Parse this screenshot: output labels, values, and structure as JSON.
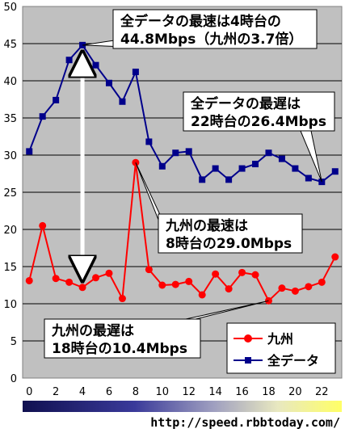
{
  "chart_data": {
    "type": "line",
    "x": [
      0,
      1,
      2,
      3,
      4,
      5,
      6,
      7,
      8,
      9,
      10,
      11,
      12,
      13,
      14,
      15,
      16,
      17,
      18,
      19,
      20,
      21,
      22,
      23
    ],
    "xticks": [
      0,
      2,
      4,
      6,
      8,
      10,
      12,
      14,
      16,
      18,
      20,
      22
    ],
    "xlim": [
      -0.5,
      23.5
    ],
    "ylim": [
      0,
      50
    ],
    "yticks": [
      0,
      5,
      10,
      15,
      20,
      25,
      30,
      35,
      40,
      45,
      50
    ],
    "grid": true,
    "legend_position": "bottom-right",
    "series": [
      {
        "name": "九州",
        "color": "#ff0000",
        "marker": "circle",
        "values": [
          13.1,
          20.5,
          13.4,
          12.9,
          12.2,
          13.5,
          14.1,
          10.7,
          29.0,
          14.6,
          12.5,
          12.6,
          13.0,
          11.2,
          14.0,
          12.0,
          14.2,
          13.9,
          10.4,
          12.1,
          11.7,
          12.3,
          12.9,
          16.3
        ]
      },
      {
        "name": "全データ",
        "color": "#00008b",
        "marker": "square",
        "values": [
          30.5,
          35.2,
          37.4,
          42.8,
          44.8,
          42.1,
          39.7,
          37.2,
          41.2,
          31.8,
          28.5,
          30.3,
          30.5,
          26.7,
          28.2,
          26.7,
          28.2,
          28.8,
          30.3,
          29.5,
          28.2,
          26.9,
          26.4,
          27.8
        ]
      }
    ],
    "annotations": [
      {
        "lines": [
          "全データの最速は4時台の",
          "44.8Mbps（九州の3.7倍）"
        ],
        "x": 4,
        "y": 44.8
      },
      {
        "lines": [
          "全データの最遅は",
          "22時台の26.4Mbps"
        ],
        "x": 22,
        "y": 26.4
      },
      {
        "lines": [
          "九州の最速は",
          "8時台の29.0Mbps"
        ],
        "x": 8,
        "y": 29.0
      },
      {
        "lines": [
          "九州の最遅は",
          "18時台の10.4Mbps"
        ],
        "x": 18,
        "y": 10.4
      }
    ],
    "footer_url": "http://speed.rbbtoday.com/"
  }
}
